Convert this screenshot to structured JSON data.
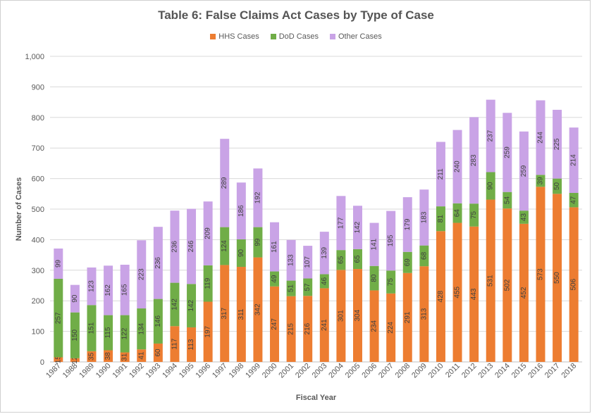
{
  "chart_data": {
    "type": "bar",
    "stacked": true,
    "title": "Table 6: False Claims Act Cases by Type of Case",
    "xlabel": "Fiscal Year",
    "ylabel": "Number of Cases",
    "ylim": [
      0,
      1000
    ],
    "yticks": [
      "0",
      "100",
      "200",
      "300",
      "400",
      "500",
      "600",
      "700",
      "800",
      "900",
      "1,000"
    ],
    "grid": true,
    "legend_position": "top",
    "categories": [
      "1987",
      "1988",
      "1989",
      "1990",
      "1991",
      "1992",
      "1993",
      "1994",
      "1995",
      "1996",
      "1997",
      "1998",
      "1999",
      "2000",
      "2001",
      "2002",
      "2003",
      "2004",
      "2005",
      "2006",
      "2007",
      "2008",
      "2009",
      "2010",
      "2011",
      "2012",
      "2013",
      "2014",
      "2015",
      "2016",
      "2017",
      "2018"
    ],
    "series": [
      {
        "name": "HHS Cases",
        "color": "#ED7D31",
        "values": [
          15,
          12,
          35,
          38,
          31,
          41,
          60,
          117,
          113,
          197,
          317,
          311,
          342,
          247,
          215,
          216,
          241,
          301,
          304,
          234,
          224,
          291,
          313,
          428,
          455,
          443,
          531,
          502,
          452,
          573,
          550,
          506
        ]
      },
      {
        "name": "DoD Cases",
        "color": "#70AD47",
        "values": [
          257,
          150,
          151,
          115,
          122,
          134,
          146,
          142,
          142,
          119,
          124,
          90,
          99,
          49,
          51,
          57,
          46,
          65,
          65,
          80,
          75,
          69,
          68,
          81,
          64,
          75,
          90,
          54,
          43,
          39,
          50,
          47
        ]
      },
      {
        "name": "Other Cases",
        "color": "#C9A3E6",
        "values": [
          99,
          90,
          123,
          162,
          165,
          223,
          236,
          236,
          246,
          209,
          289,
          186,
          192,
          161,
          133,
          107,
          139,
          177,
          142,
          141,
          195,
          179,
          183,
          211,
          240,
          283,
          237,
          259,
          259,
          244,
          225,
          214
        ]
      }
    ]
  }
}
